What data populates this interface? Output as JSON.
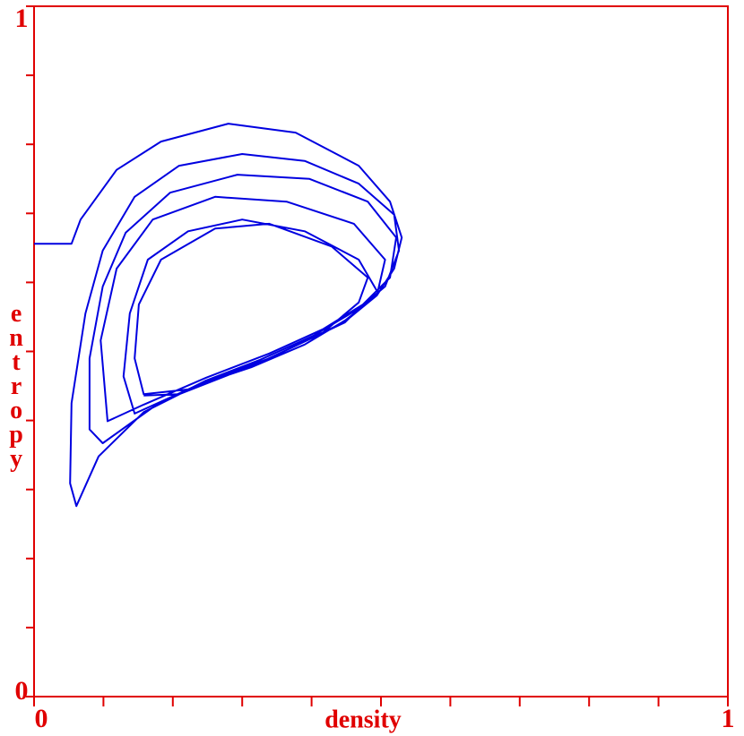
{
  "chart_data": {
    "type": "line",
    "x_label": "density",
    "y_label": "entropy",
    "xlim": [
      0,
      1
    ],
    "ylim": [
      0,
      1
    ],
    "xticks": [
      0,
      1
    ],
    "yticks": [
      0,
      1
    ],
    "xminor": [
      0.1,
      0.2,
      0.3,
      0.4,
      0.5,
      0.6,
      0.7,
      0.8,
      0.9
    ],
    "yminor": [
      0.1,
      0.2,
      0.3,
      0.4,
      0.5,
      0.6,
      0.7,
      0.8,
      0.9
    ],
    "axis_color": "#e00000",
    "color": "#0000e0",
    "x": [
      0,
      0.054,
      0.067,
      0.119,
      0.183,
      0.28,
      0.377,
      0.468,
      0.513,
      0.53,
      0.519,
      0.494,
      0.455,
      0.39,
      0.313,
      0.235,
      0.158,
      0.093,
      0.061,
      0.052,
      0.054,
      0.074,
      0.099,
      0.145,
      0.209,
      0.3,
      0.39,
      0.468,
      0.519,
      0.526,
      0.506,
      0.468,
      0.403,
      0.326,
      0.248,
      0.171,
      0.099,
      0.08,
      0.08,
      0.099,
      0.132,
      0.196,
      0.293,
      0.397,
      0.481,
      0.522,
      0.513,
      0.474,
      0.416,
      0.339,
      0.248,
      0.158,
      0.106,
      0.096,
      0.119,
      0.171,
      0.261,
      0.364,
      0.461,
      0.506,
      0.494,
      0.442,
      0.339,
      0.235,
      0.145,
      0.129,
      0.138,
      0.164,
      0.222,
      0.3,
      0.39,
      0.468,
      0.494,
      0.448,
      0.339,
      0.222,
      0.158,
      0.145,
      0.151,
      0.183,
      0.261,
      0.339,
      0.429,
      0.481,
      0.468,
      0.416,
      0.326,
      0.209,
      0.158
    ],
    "values": [
      0.656,
      0.656,
      0.691,
      0.763,
      0.804,
      0.83,
      0.817,
      0.769,
      0.717,
      0.665,
      0.62,
      0.581,
      0.549,
      0.51,
      0.477,
      0.451,
      0.412,
      0.348,
      0.276,
      0.309,
      0.425,
      0.555,
      0.646,
      0.724,
      0.769,
      0.786,
      0.776,
      0.743,
      0.698,
      0.646,
      0.594,
      0.562,
      0.523,
      0.488,
      0.458,
      0.419,
      0.367,
      0.387,
      0.49,
      0.594,
      0.672,
      0.73,
      0.756,
      0.75,
      0.717,
      0.665,
      0.607,
      0.568,
      0.532,
      0.497,
      0.462,
      0.423,
      0.399,
      0.516,
      0.62,
      0.691,
      0.724,
      0.717,
      0.685,
      0.633,
      0.581,
      0.54,
      0.49,
      0.451,
      0.41,
      0.464,
      0.555,
      0.633,
      0.674,
      0.691,
      0.674,
      0.633,
      0.588,
      0.542,
      0.49,
      0.445,
      0.438,
      0.49,
      0.568,
      0.633,
      0.678,
      0.685,
      0.652,
      0.607,
      0.571,
      0.527,
      0.484,
      0.438,
      0.436
    ]
  }
}
